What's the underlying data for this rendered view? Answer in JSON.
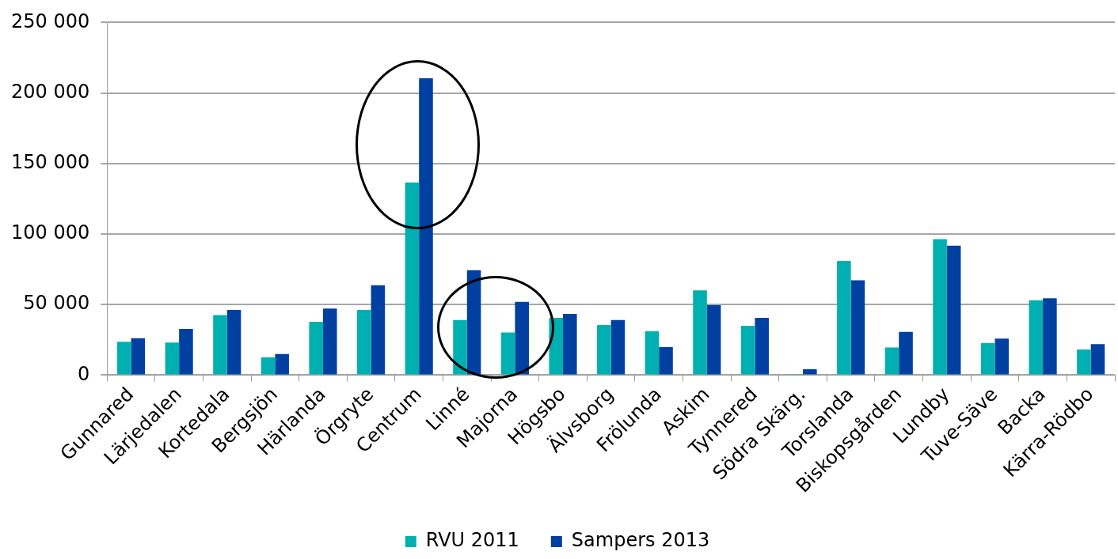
{
  "chart_data": {
    "type": "bar",
    "categories": [
      "Gunnared",
      "Lärjedalen",
      "Kortedala",
      "Bergsjön",
      "Härlanda",
      "Örgryte",
      "Centrum",
      "Linné",
      "Majorna",
      "Högsbo",
      "Älvsborg",
      "Frölunda",
      "Askim",
      "Tynnered",
      "Södra Skärg.",
      "Torslanda",
      "Biskopsgården",
      "Lundby",
      "Tuve-Säve",
      "Backa",
      "Kärra-Rödbo"
    ],
    "series": [
      {
        "name": "RVU 2011",
        "color": "#00b0b0",
        "values": [
          23600,
          23100,
          42600,
          12500,
          37800,
          46200,
          136600,
          39000,
          30200,
          40600,
          35500,
          31000,
          60000,
          35000,
          300,
          81000,
          19600,
          96400,
          22600,
          53000,
          18200
        ]
      },
      {
        "name": "Sampers 2013",
        "color": "#0040a0",
        "values": [
          26100,
          32700,
          46200,
          14900,
          47200,
          63700,
          210400,
          74400,
          52000,
          43400,
          39000,
          19800,
          49500,
          40600,
          4100,
          67200,
          30700,
          91700,
          25900,
          54500,
          21900
        ]
      }
    ],
    "ylim": [
      0,
      250000
    ],
    "yticks": [
      {
        "value": 0,
        "label": "0"
      },
      {
        "value": 50000,
        "label": "50 000"
      },
      {
        "value": 100000,
        "label": "100 000"
      },
      {
        "value": 150000,
        "label": "150 000"
      },
      {
        "value": 200000,
        "label": "200 000"
      },
      {
        "value": 250000,
        "label": "250 000"
      }
    ],
    "grid": "y",
    "legend": "bottom"
  }
}
